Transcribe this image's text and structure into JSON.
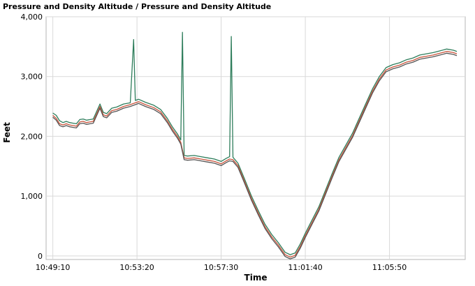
{
  "chart_data": {
    "type": "line",
    "title": "Pressure and Density Altitude / Pressure and Density Altitude",
    "xlabel": "Time",
    "ylabel": "Feet",
    "ylim": [
      -60,
      4000
    ],
    "grid": true,
    "x_ticks": [
      "10:49:10",
      "10:53:20",
      "10:57:30",
      "11:01:40",
      "11:05:50"
    ],
    "y_ticks": [
      {
        "value": 0,
        "label": "0"
      },
      {
        "value": 1000,
        "label": "1,000"
      },
      {
        "value": 2000,
        "label": "2,000"
      },
      {
        "value": 3000,
        "label": "3,000"
      },
      {
        "value": 4000,
        "label": "4,000"
      }
    ],
    "x_tick_seconds": [
      0,
      250,
      500,
      750,
      1000
    ],
    "xlim_seconds": [
      -20,
      1225
    ],
    "series": [
      {
        "color": "#2e7d5b",
        "points": [
          [
            0,
            2390
          ],
          [
            10,
            2350
          ],
          [
            20,
            2260
          ],
          [
            30,
            2230
          ],
          [
            40,
            2250
          ],
          [
            50,
            2230
          ],
          [
            60,
            2220
          ],
          [
            70,
            2210
          ],
          [
            80,
            2280
          ],
          [
            90,
            2290
          ],
          [
            100,
            2270
          ],
          [
            120,
            2290
          ],
          [
            140,
            2540
          ],
          [
            150,
            2400
          ],
          [
            160,
            2380
          ],
          [
            175,
            2470
          ],
          [
            190,
            2490
          ],
          [
            210,
            2540
          ],
          [
            230,
            2560
          ],
          [
            240,
            3620
          ],
          [
            245,
            2600
          ],
          [
            255,
            2620
          ],
          [
            275,
            2570
          ],
          [
            300,
            2520
          ],
          [
            320,
            2450
          ],
          [
            340,
            2300
          ],
          [
            355,
            2160
          ],
          [
            370,
            2040
          ],
          [
            380,
            1940
          ],
          [
            385,
            3740
          ],
          [
            390,
            1680
          ],
          [
            400,
            1670
          ],
          [
            420,
            1680
          ],
          [
            440,
            1660
          ],
          [
            460,
            1640
          ],
          [
            480,
            1620
          ],
          [
            500,
            1580
          ],
          [
            515,
            1630
          ],
          [
            525,
            1660
          ],
          [
            530,
            3670
          ],
          [
            535,
            1650
          ],
          [
            550,
            1550
          ],
          [
            570,
            1280
          ],
          [
            590,
            1000
          ],
          [
            610,
            760
          ],
          [
            630,
            530
          ],
          [
            650,
            360
          ],
          [
            670,
            220
          ],
          [
            690,
            60
          ],
          [
            705,
            20
          ],
          [
            720,
            50
          ],
          [
            735,
            200
          ],
          [
            750,
            380
          ],
          [
            770,
            600
          ],
          [
            790,
            820
          ],
          [
            810,
            1100
          ],
          [
            830,
            1380
          ],
          [
            850,
            1650
          ],
          [
            870,
            1850
          ],
          [
            890,
            2050
          ],
          [
            910,
            2300
          ],
          [
            930,
            2550
          ],
          [
            950,
            2800
          ],
          [
            970,
            3000
          ],
          [
            990,
            3150
          ],
          [
            1010,
            3200
          ],
          [
            1030,
            3230
          ],
          [
            1050,
            3280
          ],
          [
            1070,
            3310
          ],
          [
            1090,
            3360
          ],
          [
            1110,
            3380
          ],
          [
            1130,
            3400
          ],
          [
            1150,
            3430
          ],
          [
            1170,
            3460
          ],
          [
            1190,
            3440
          ],
          [
            1200,
            3420
          ]
        ]
      },
      {
        "color": "#c8553d",
        "points": [
          [
            0,
            2350
          ],
          [
            10,
            2300
          ],
          [
            20,
            2210
          ],
          [
            30,
            2190
          ],
          [
            40,
            2210
          ],
          [
            50,
            2190
          ],
          [
            60,
            2180
          ],
          [
            70,
            2170
          ],
          [
            80,
            2240
          ],
          [
            90,
            2250
          ],
          [
            100,
            2230
          ],
          [
            120,
            2250
          ],
          [
            140,
            2500
          ],
          [
            150,
            2360
          ],
          [
            160,
            2340
          ],
          [
            175,
            2430
          ],
          [
            190,
            2450
          ],
          [
            210,
            2500
          ],
          [
            230,
            2530
          ],
          [
            245,
            2560
          ],
          [
            255,
            2580
          ],
          [
            275,
            2530
          ],
          [
            300,
            2480
          ],
          [
            320,
            2410
          ],
          [
            340,
            2260
          ],
          [
            355,
            2120
          ],
          [
            370,
            2000
          ],
          [
            380,
            1900
          ],
          [
            390,
            1640
          ],
          [
            400,
            1630
          ],
          [
            420,
            1640
          ],
          [
            440,
            1620
          ],
          [
            460,
            1600
          ],
          [
            480,
            1580
          ],
          [
            500,
            1540
          ],
          [
            515,
            1590
          ],
          [
            525,
            1620
          ],
          [
            535,
            1610
          ],
          [
            550,
            1510
          ],
          [
            570,
            1240
          ],
          [
            590,
            960
          ],
          [
            610,
            720
          ],
          [
            630,
            490
          ],
          [
            650,
            320
          ],
          [
            670,
            180
          ],
          [
            690,
            20
          ],
          [
            705,
            -20
          ],
          [
            720,
            10
          ],
          [
            735,
            160
          ],
          [
            750,
            340
          ],
          [
            770,
            560
          ],
          [
            790,
            780
          ],
          [
            810,
            1060
          ],
          [
            830,
            1340
          ],
          [
            850,
            1610
          ],
          [
            870,
            1810
          ],
          [
            890,
            2010
          ],
          [
            910,
            2260
          ],
          [
            930,
            2510
          ],
          [
            950,
            2760
          ],
          [
            970,
            2960
          ],
          [
            990,
            3110
          ],
          [
            1010,
            3160
          ],
          [
            1030,
            3190
          ],
          [
            1050,
            3240
          ],
          [
            1070,
            3270
          ],
          [
            1090,
            3320
          ],
          [
            1110,
            3340
          ],
          [
            1130,
            3360
          ],
          [
            1150,
            3390
          ],
          [
            1170,
            3420
          ],
          [
            1190,
            3400
          ],
          [
            1200,
            3380
          ]
        ]
      },
      {
        "color": "#555555",
        "points": [
          [
            0,
            2320
          ],
          [
            10,
            2270
          ],
          [
            20,
            2180
          ],
          [
            30,
            2160
          ],
          [
            40,
            2180
          ],
          [
            50,
            2160
          ],
          [
            60,
            2150
          ],
          [
            70,
            2140
          ],
          [
            80,
            2210
          ],
          [
            90,
            2220
          ],
          [
            100,
            2200
          ],
          [
            120,
            2220
          ],
          [
            140,
            2470
          ],
          [
            150,
            2330
          ],
          [
            160,
            2310
          ],
          [
            175,
            2400
          ],
          [
            190,
            2420
          ],
          [
            210,
            2470
          ],
          [
            230,
            2500
          ],
          [
            245,
            2530
          ],
          [
            255,
            2550
          ],
          [
            275,
            2500
          ],
          [
            300,
            2450
          ],
          [
            320,
            2380
          ],
          [
            340,
            2230
          ],
          [
            355,
            2090
          ],
          [
            370,
            1970
          ],
          [
            380,
            1870
          ],
          [
            390,
            1610
          ],
          [
            400,
            1600
          ],
          [
            420,
            1610
          ],
          [
            440,
            1590
          ],
          [
            460,
            1570
          ],
          [
            480,
            1550
          ],
          [
            500,
            1510
          ],
          [
            515,
            1560
          ],
          [
            525,
            1590
          ],
          [
            535,
            1580
          ],
          [
            550,
            1480
          ],
          [
            570,
            1210
          ],
          [
            590,
            930
          ],
          [
            610,
            690
          ],
          [
            630,
            460
          ],
          [
            650,
            290
          ],
          [
            670,
            150
          ],
          [
            690,
            -10
          ],
          [
            705,
            -50
          ],
          [
            720,
            -20
          ],
          [
            735,
            130
          ],
          [
            750,
            310
          ],
          [
            770,
            530
          ],
          [
            790,
            750
          ],
          [
            810,
            1030
          ],
          [
            830,
            1310
          ],
          [
            850,
            1580
          ],
          [
            870,
            1780
          ],
          [
            890,
            1980
          ],
          [
            910,
            2230
          ],
          [
            930,
            2480
          ],
          [
            950,
            2730
          ],
          [
            970,
            2930
          ],
          [
            990,
            3080
          ],
          [
            1010,
            3130
          ],
          [
            1030,
            3160
          ],
          [
            1050,
            3210
          ],
          [
            1070,
            3240
          ],
          [
            1090,
            3290
          ],
          [
            1110,
            3310
          ],
          [
            1130,
            3330
          ],
          [
            1150,
            3360
          ],
          [
            1170,
            3390
          ],
          [
            1190,
            3370
          ],
          [
            1200,
            3350
          ]
        ]
      }
    ]
  }
}
